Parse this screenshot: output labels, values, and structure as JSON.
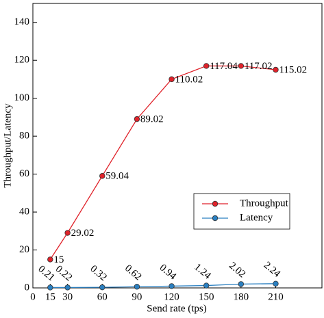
{
  "chart_data": {
    "type": "line",
    "x_label": "Send rate (tps)",
    "y_label": "Throughput/Latency",
    "x": [
      15,
      30,
      60,
      90,
      120,
      150,
      180,
      210
    ],
    "series": [
      {
        "name": "Throughput",
        "color": "#e0222a",
        "values": [
          15,
          29.02,
          59.04,
          89.02,
          110.02,
          117.04,
          117.02,
          115.02
        ]
      },
      {
        "name": "Latency",
        "color": "#2a7fc0",
        "values": [
          0.21,
          0.22,
          0.32,
          0.62,
          0.94,
          1.24,
          2.02,
          2.24
        ]
      }
    ],
    "xlim": [
      0,
      250
    ],
    "xticks": [
      0,
      15,
      30,
      60,
      90,
      120,
      150,
      180,
      210
    ],
    "ylim": [
      0,
      150
    ],
    "yticks": [
      0,
      20,
      40,
      60,
      80,
      100,
      120,
      140
    ],
    "legend": "lower right",
    "grid": false
  }
}
